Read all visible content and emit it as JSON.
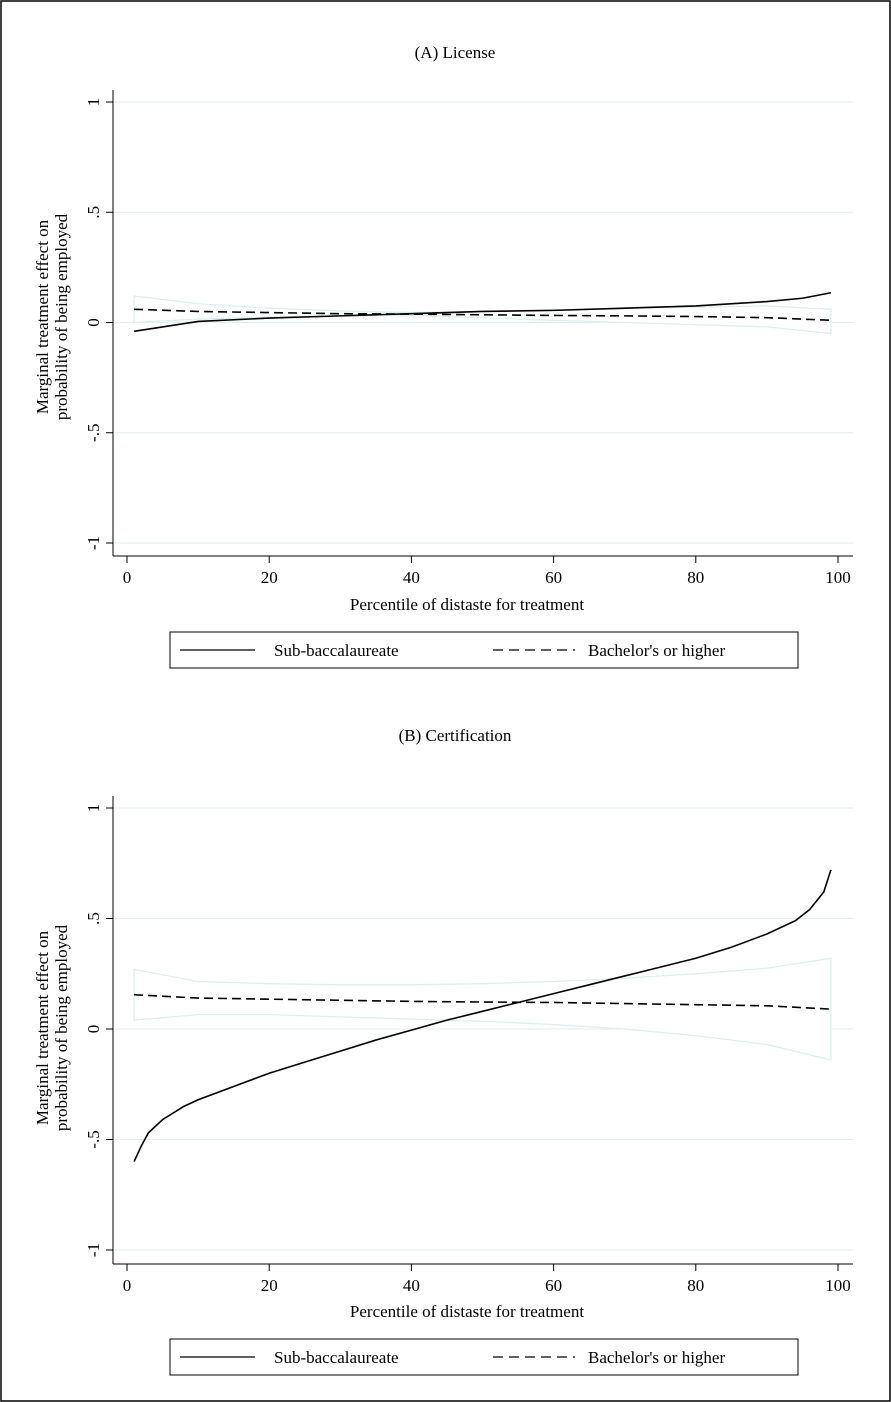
{
  "chart_data": [
    {
      "type": "line",
      "title": "(A) License",
      "xlabel": "Percentile of distaste for treatment",
      "ylabel_line1": "Marginal treatment effect on",
      "ylabel_line2": "probability of being employed",
      "xlim": [
        0,
        100
      ],
      "ylim": [
        -1,
        1
      ],
      "x_ticks": [
        {
          "value": 0,
          "label": "0"
        },
        {
          "value": 20,
          "label": "20"
        },
        {
          "value": 40,
          "label": "40"
        },
        {
          "value": 60,
          "label": "60"
        },
        {
          "value": 80,
          "label": "80"
        },
        {
          "value": 100,
          "label": "100"
        }
      ],
      "y_ticks": [
        {
          "value": -1,
          "label": "-1"
        },
        {
          "value": -0.5,
          "label": "-.5"
        },
        {
          "value": 0,
          "label": "0"
        },
        {
          "value": 0.5,
          "label": ".5"
        },
        {
          "value": 1,
          "label": "1"
        }
      ],
      "grid": true,
      "legend_position": "bottom",
      "series": [
        {
          "name": "Sub-baccalaureate",
          "style": "solid",
          "color": "#000000",
          "x": [
            1,
            5,
            10,
            20,
            30,
            40,
            50,
            60,
            70,
            80,
            90,
            95,
            99
          ],
          "y": [
            -0.04,
            -0.02,
            0.005,
            0.02,
            0.03,
            0.04,
            0.05,
            0.055,
            0.065,
            0.075,
            0.095,
            0.11,
            0.135
          ]
        },
        {
          "name": "Bachelor's or higher",
          "style": "dashed",
          "color": "#000000",
          "x": [
            1,
            10,
            20,
            30,
            40,
            50,
            60,
            70,
            80,
            90,
            99
          ],
          "y": [
            0.06,
            0.05,
            0.045,
            0.04,
            0.038,
            0.035,
            0.032,
            0.03,
            0.027,
            0.022,
            0.01
          ]
        },
        {
          "name": "",
          "style": "ci",
          "color": "#dfeeee",
          "x": [
            1,
            10,
            20,
            30,
            40,
            50,
            60,
            70,
            80,
            90,
            99
          ],
          "y": [
            0.12,
            0.085,
            0.065,
            0.052,
            0.045,
            0.05,
            0.057,
            0.063,
            0.07,
            0.075,
            0.06
          ]
        },
        {
          "name": "",
          "style": "ci",
          "color": "#dfeeee",
          "x": [
            1,
            10,
            20,
            30,
            40,
            50,
            60,
            70,
            80,
            90,
            99
          ],
          "y": [
            0.0,
            0.015,
            0.025,
            0.03,
            0.032,
            0.022,
            0.01,
            0.0,
            -0.01,
            -0.02,
            -0.05
          ]
        }
      ],
      "legend": [
        {
          "label": "Sub-baccalaureate",
          "style": "solid"
        },
        {
          "label": "Bachelor's or higher",
          "style": "dashed"
        }
      ]
    },
    {
      "type": "line",
      "title": "(B) Certification",
      "xlabel": "Percentile of distaste for treatment",
      "ylabel_line1": "Marginal treatment effect on",
      "ylabel_line2": "probability of being employed",
      "xlim": [
        0,
        100
      ],
      "ylim": [
        -1,
        1
      ],
      "x_ticks": [
        {
          "value": 0,
          "label": "0"
        },
        {
          "value": 20,
          "label": "20"
        },
        {
          "value": 40,
          "label": "40"
        },
        {
          "value": 60,
          "label": "60"
        },
        {
          "value": 80,
          "label": "80"
        },
        {
          "value": 100,
          "label": "100"
        }
      ],
      "y_ticks": [
        {
          "value": -1,
          "label": "-1"
        },
        {
          "value": -0.5,
          "label": "-.5"
        },
        {
          "value": 0,
          "label": "0"
        },
        {
          "value": 0.5,
          "label": ".5"
        },
        {
          "value": 1,
          "label": "1"
        }
      ],
      "grid": true,
      "legend_position": "bottom",
      "series": [
        {
          "name": "Sub-baccalaureate",
          "style": "solid",
          "color": "#000000",
          "x": [
            1,
            2,
            3,
            5,
            8,
            10,
            15,
            20,
            25,
            30,
            35,
            40,
            45,
            50,
            55,
            60,
            65,
            70,
            75,
            80,
            85,
            90,
            94,
            96,
            98,
            99
          ],
          "y": [
            -0.6,
            -0.53,
            -0.47,
            -0.41,
            -0.35,
            -0.32,
            -0.26,
            -0.2,
            -0.15,
            -0.1,
            -0.05,
            -0.005,
            0.04,
            0.08,
            0.12,
            0.16,
            0.2,
            0.24,
            0.28,
            0.32,
            0.37,
            0.43,
            0.49,
            0.54,
            0.62,
            0.72
          ]
        },
        {
          "name": "Bachelor's or higher",
          "style": "dashed",
          "color": "#000000",
          "x": [
            1,
            10,
            20,
            30,
            40,
            50,
            60,
            70,
            80,
            90,
            99
          ],
          "y": [
            0.155,
            0.14,
            0.135,
            0.13,
            0.125,
            0.122,
            0.12,
            0.115,
            0.11,
            0.105,
            0.09
          ]
        },
        {
          "name": "",
          "style": "ci",
          "color": "#dfeeee",
          "x": [
            1,
            10,
            20,
            30,
            40,
            50,
            60,
            70,
            80,
            90,
            99
          ],
          "y": [
            0.27,
            0.215,
            0.205,
            0.2,
            0.2,
            0.205,
            0.215,
            0.23,
            0.25,
            0.275,
            0.32
          ]
        },
        {
          "name": "",
          "style": "ci",
          "color": "#dfeeee",
          "x": [
            1,
            10,
            20,
            30,
            40,
            50,
            60,
            70,
            80,
            90,
            99
          ],
          "y": [
            0.04,
            0.065,
            0.065,
            0.055,
            0.045,
            0.035,
            0.02,
            0.0,
            -0.03,
            -0.07,
            -0.14
          ]
        }
      ],
      "legend": [
        {
          "label": "Sub-baccalaureate",
          "style": "solid"
        },
        {
          "label": "Bachelor's or higher",
          "style": "dashed"
        }
      ]
    }
  ]
}
